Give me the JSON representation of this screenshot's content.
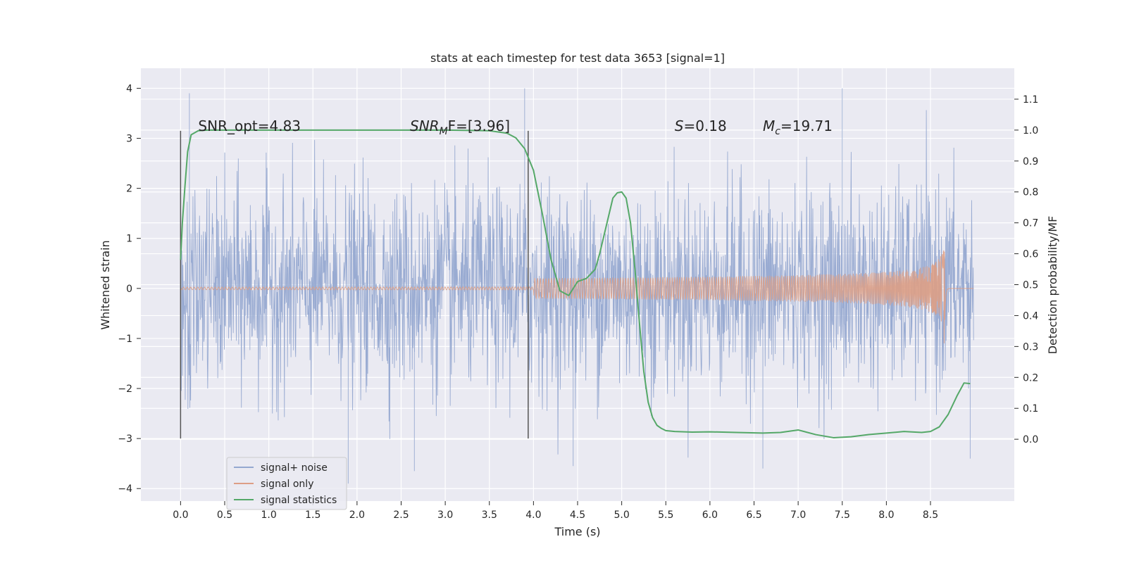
{
  "chart_data": {
    "type": "line",
    "title": "stats at each timestep for test data 3653 [signal=1]",
    "xlabel": "Time (s)",
    "ylabel": "Whitened strain",
    "y2label": "Detection probability/MF",
    "xlim": [
      -0.45,
      9.45
    ],
    "ylim": [
      -4.25,
      4.4
    ],
    "y2lim": [
      -0.2,
      1.2
    ],
    "xticks": [
      0.0,
      0.5,
      1.0,
      1.5,
      2.0,
      2.5,
      3.0,
      3.5,
      4.0,
      4.5,
      5.0,
      5.5,
      6.0,
      6.5,
      7.0,
      7.5,
      8.0,
      8.5
    ],
    "yticks": [
      -4,
      -3,
      -2,
      -1,
      0,
      1,
      2,
      3,
      4
    ],
    "y2ticks": [
      0.0,
      0.1,
      0.2,
      0.3,
      0.4,
      0.5,
      0.6,
      0.7,
      0.8,
      0.9,
      1.0,
      1.1
    ],
    "grid": true,
    "legend_position": "lower-left",
    "annotations": [
      {
        "text": "SNR_opt=4.83",
        "x": 0.2,
        "y": 3.15,
        "math": false
      },
      {
        "text": "SNR",
        "sub": "M",
        "rest": "F=[3.96]",
        "x": 2.6,
        "y": 3.15,
        "math": true
      },
      {
        "text": "S",
        "rest": "=0.18",
        "x": 5.6,
        "y": 3.15,
        "math": true
      },
      {
        "text": "M",
        "sub": "c",
        "rest": "=19.71",
        "x": 6.6,
        "y": 3.15,
        "math": true
      }
    ],
    "vlines": [
      {
        "x": 0.0,
        "y": [
          -3.0,
          3.15
        ]
      },
      {
        "x": 3.94,
        "y": [
          -3.0,
          3.15
        ]
      }
    ],
    "series": [
      {
        "name": "signal+ noise",
        "color": "#95a8d0",
        "axis": "left",
        "x_range": [
          0.0,
          8.99
        ],
        "envelope_sigma": 1.0,
        "sample_peaks": [
          {
            "x": 0.1,
            "y": 3.9
          },
          {
            "x": 1.9,
            "y": -3.9
          },
          {
            "x": 2.65,
            "y": -3.65
          },
          {
            "x": 3.9,
            "y": 4.0
          },
          {
            "x": 4.45,
            "y": -3.55
          },
          {
            "x": 6.6,
            "y": -3.6
          },
          {
            "x": 7.5,
            "y": 4.0
          },
          {
            "x": 8.95,
            "y": -3.4
          }
        ]
      },
      {
        "name": "signal only",
        "color": "#dd9e85",
        "axis": "left",
        "chirp_start": 4.0,
        "merger_time": 8.66,
        "peak_amplitude": 1.2,
        "ringdown_end": 8.99
      },
      {
        "name": "signal statistics",
        "color": "#55a868",
        "axis": "right",
        "x": [
          0.0,
          0.02,
          0.05,
          0.08,
          0.12,
          0.2,
          0.3,
          0.5,
          1.0,
          2.0,
          3.0,
          3.5,
          3.7,
          3.8,
          3.9,
          4.0,
          4.1,
          4.2,
          4.3,
          4.4,
          4.5,
          4.6,
          4.7,
          4.75,
          4.8,
          4.85,
          4.9,
          4.95,
          5.0,
          5.05,
          5.1,
          5.15,
          5.2,
          5.25,
          5.3,
          5.35,
          5.4,
          5.45,
          5.5,
          5.6,
          5.8,
          6.0,
          6.3,
          6.6,
          6.8,
          7.0,
          7.2,
          7.4,
          7.6,
          7.8,
          8.0,
          8.2,
          8.4,
          8.5,
          8.6,
          8.7,
          8.8,
          8.88,
          8.95
        ],
        "y": [
          0.58,
          0.7,
          0.82,
          0.93,
          0.985,
          0.998,
          1.0,
          1.0,
          1.0,
          1.0,
          1.0,
          0.998,
          0.99,
          0.975,
          0.94,
          0.87,
          0.73,
          0.58,
          0.48,
          0.465,
          0.51,
          0.52,
          0.55,
          0.6,
          0.66,
          0.72,
          0.78,
          0.797,
          0.8,
          0.78,
          0.7,
          0.55,
          0.38,
          0.22,
          0.12,
          0.07,
          0.045,
          0.035,
          0.028,
          0.025,
          0.023,
          0.024,
          0.022,
          0.02,
          0.022,
          0.03,
          0.015,
          0.005,
          0.008,
          0.015,
          0.02,
          0.025,
          0.022,
          0.025,
          0.04,
          0.08,
          0.14,
          0.182,
          0.18
        ]
      }
    ]
  }
}
